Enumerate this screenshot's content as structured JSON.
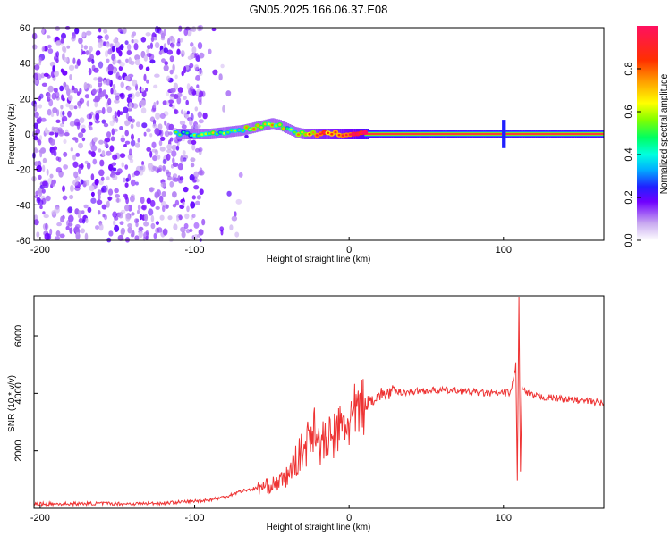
{
  "figure_title": "GN05.2025.166.06.37.E08",
  "chart_data": [
    {
      "type": "heatmap",
      "xlabel": "Height of straight line (km)",
      "ylabel": "Frequency (Hz)",
      "xlim": [
        -204,
        165
      ],
      "ylim": [
        -60,
        60
      ],
      "xticks": [
        -200,
        -100,
        0,
        100
      ],
      "yticks": [
        -60,
        -40,
        -20,
        0,
        20,
        40,
        60
      ],
      "colorbar": {
        "label": "Normalized spectral amplitude",
        "range": [
          0,
          1
        ],
        "ticks": [
          0,
          0.2,
          0.4,
          0.6,
          0.8
        ],
        "tick_labels": [
          "0.0",
          "0.2",
          "0.4",
          "0.6",
          "0.8"
        ]
      },
      "signal_track": {
        "x": [
          -112,
          -100,
          -90,
          -80,
          -70,
          -60,
          -50,
          -45,
          -40,
          -35,
          -30,
          -20,
          -10,
          0,
          10,
          100,
          165
        ],
        "frequency": [
          0,
          0,
          0,
          1,
          2,
          4,
          6,
          5,
          3,
          1,
          0,
          0,
          0,
          0,
          0,
          0,
          0
        ],
        "amplitude": [
          0.3,
          0.35,
          0.4,
          0.4,
          0.45,
          0.5,
          0.5,
          0.45,
          0.4,
          0.35,
          0.6,
          0.7,
          0.75,
          0.8,
          0.95,
          1.0,
          0.95
        ]
      },
      "noise_region": {
        "x_from": -204,
        "x_to": -90,
        "amplitude": [
          0.05,
          0.2
        ]
      },
      "grid": false
    },
    {
      "type": "line",
      "xlabel": "Height of straight line (km)",
      "ylabel": "SNR (10 * v/v)",
      "xlim": [
        -204,
        165
      ],
      "ylim": [
        0,
        7400
      ],
      "xticks": [
        -200,
        -100,
        0,
        100
      ],
      "yticks": [
        2000,
        4000,
        6000
      ],
      "color": "#ee3333",
      "series": [
        {
          "x": [
            -204,
            -180,
            -160,
            -140,
            -120,
            -100,
            -90,
            -80,
            -70,
            -60,
            -50,
            -45,
            -40,
            -35,
            -30,
            -25,
            -22,
            -20,
            -15,
            -10,
            -5,
            0,
            5,
            10,
            15,
            20,
            25,
            30,
            40,
            50,
            60,
            70,
            80,
            90,
            100,
            105,
            108,
            109,
            110,
            111,
            112,
            115,
            120,
            130,
            140,
            150,
            160,
            165
          ],
          "y": [
            150,
            160,
            170,
            160,
            180,
            250,
            300,
            400,
            600,
            700,
            800,
            900,
            1100,
            1600,
            2000,
            2500,
            3200,
            2200,
            2300,
            2500,
            2800,
            3000,
            3300,
            3600,
            3800,
            3950,
            4000,
            4050,
            4050,
            4100,
            4100,
            4100,
            4050,
            4000,
            4000,
            4050,
            5000,
            900,
            7400,
            1200,
            4200,
            4000,
            3900,
            3850,
            3800,
            3750,
            3700,
            3650
          ]
        }
      ],
      "grid": false
    }
  ]
}
